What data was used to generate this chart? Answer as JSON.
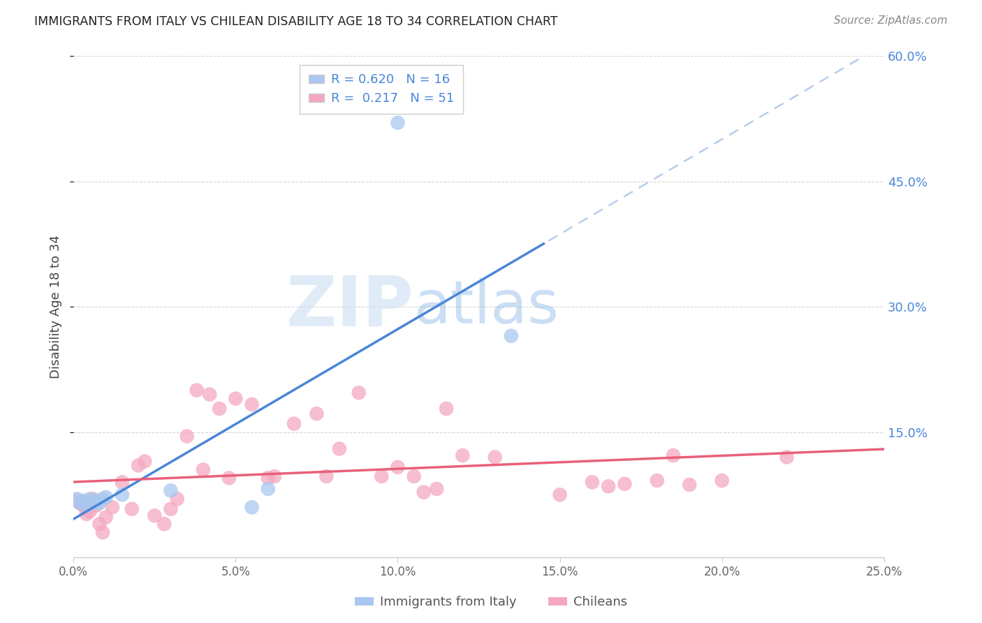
{
  "title": "IMMIGRANTS FROM ITALY VS CHILEAN DISABILITY AGE 18 TO 34 CORRELATION CHART",
  "source": "Source: ZipAtlas.com",
  "ylabel": "Disability Age 18 to 34",
  "xlim": [
    0.0,
    0.25
  ],
  "ylim": [
    0.0,
    0.6
  ],
  "xtick_labels": [
    "0.0%",
    "5.0%",
    "10.0%",
    "15.0%",
    "20.0%",
    "25.0%"
  ],
  "xtick_vals": [
    0.0,
    0.05,
    0.1,
    0.15,
    0.2,
    0.25
  ],
  "ytick_labels": [
    "15.0%",
    "30.0%",
    "45.0%",
    "60.0%"
  ],
  "ytick_vals": [
    0.15,
    0.3,
    0.45,
    0.6
  ],
  "italy_color": "#a8c8f0",
  "chile_color": "#f4a8c0",
  "italy_line_color": "#4a86d8",
  "chile_line_color": "#e8607a",
  "italy_dash_color": "#b0c8e8",
  "italy_R": 0.62,
  "italy_N": 16,
  "chile_R": 0.217,
  "chile_N": 51,
  "legend_label_italy": "Immigrants from Italy",
  "legend_label_chile": "Chileans",
  "watermark_zip": "ZIP",
  "watermark_atlas": "atlas",
  "italy_x": [
    0.001,
    0.002,
    0.003,
    0.004,
    0.005,
    0.006,
    0.007,
    0.008,
    0.009,
    0.01,
    0.015,
    0.03,
    0.055,
    0.06,
    0.1,
    0.135
  ],
  "italy_y": [
    0.07,
    0.065,
    0.068,
    0.062,
    0.07,
    0.065,
    0.068,
    0.065,
    0.07,
    0.072,
    0.075,
    0.08,
    0.06,
    0.082,
    0.52,
    0.265
  ],
  "chile_x": [
    0.001,
    0.002,
    0.003,
    0.004,
    0.005,
    0.006,
    0.007,
    0.008,
    0.009,
    0.01,
    0.012,
    0.015,
    0.018,
    0.02,
    0.022,
    0.025,
    0.028,
    0.03,
    0.032,
    0.035,
    0.038,
    0.04,
    0.042,
    0.045,
    0.048,
    0.05,
    0.055,
    0.06,
    0.062,
    0.068,
    0.075,
    0.078,
    0.082,
    0.088,
    0.095,
    0.1,
    0.105,
    0.108,
    0.112,
    0.115,
    0.12,
    0.13,
    0.15,
    0.16,
    0.165,
    0.17,
    0.18,
    0.185,
    0.19,
    0.2,
    0.22
  ],
  "chile_y": [
    0.068,
    0.065,
    0.062,
    0.052,
    0.055,
    0.07,
    0.062,
    0.04,
    0.03,
    0.048,
    0.06,
    0.09,
    0.058,
    0.11,
    0.115,
    0.05,
    0.04,
    0.058,
    0.07,
    0.145,
    0.2,
    0.105,
    0.195,
    0.178,
    0.095,
    0.19,
    0.183,
    0.095,
    0.097,
    0.16,
    0.172,
    0.097,
    0.13,
    0.197,
    0.097,
    0.108,
    0.097,
    0.078,
    0.082,
    0.178,
    0.122,
    0.12,
    0.075,
    0.09,
    0.085,
    0.088,
    0.092,
    0.122,
    0.087,
    0.092,
    0.12
  ]
}
